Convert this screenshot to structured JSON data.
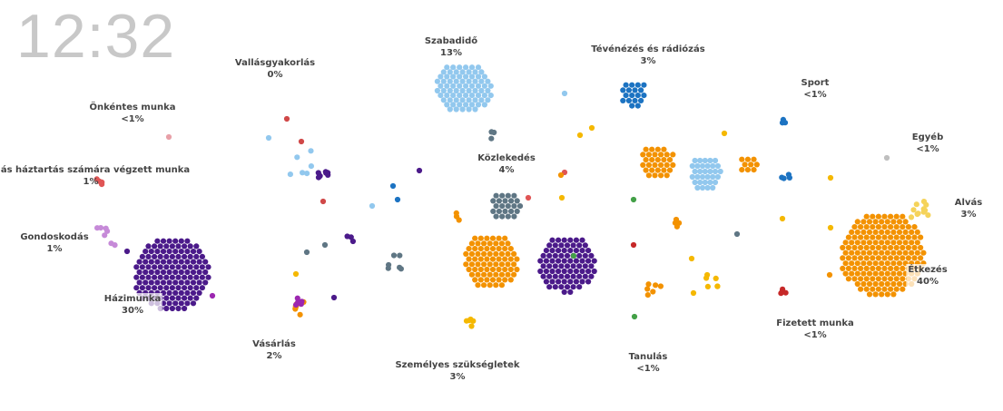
{
  "clock": "12:32",
  "chart_data": {
    "type": "scatter",
    "groups": [
      {
        "id": "hazimunka",
        "name": "Házimunka",
        "pct": "30%",
        "color": "#4b1a8a"
      },
      {
        "id": "etkezes",
        "name": "Étkezés",
        "pct": "40%",
        "color": "#f39200"
      },
      {
        "id": "szabadido",
        "name": "Szabadidő",
        "pct": "13%",
        "color": "#92c8ee"
      },
      {
        "id": "kozlekedes",
        "name": "Közlekedés",
        "pct": "4%",
        "color": "#5f7684"
      },
      {
        "id": "teve",
        "name": "Tévénézés és rádiózás",
        "pct": "3%",
        "color": "#1c73c2"
      },
      {
        "id": "sport",
        "name": "Sport",
        "pct": "<1%",
        "color": "#1c73c2"
      },
      {
        "id": "egyeb",
        "name": "Egyéb",
        "pct": "<1%",
        "color": "#bfbfbf"
      },
      {
        "id": "alvas",
        "name": "Alvás",
        "pct": "3%",
        "color": "#f5d35a"
      },
      {
        "id": "fizetett",
        "name": "Fizetett munka",
        "pct": "<1%",
        "color": "#c62828"
      },
      {
        "id": "tanulas",
        "name": "Tanulás",
        "pct": "<1%",
        "color": "#43a047"
      },
      {
        "id": "szemelyes",
        "name": "Személyes szükségletek",
        "pct": "3%",
        "color": "#f5b800"
      },
      {
        "id": "vasarlas",
        "name": "Vásárlás",
        "pct": "2%",
        "color": "#9c27b0"
      },
      {
        "id": "gondoskodas",
        "name": "Gondoskodás",
        "pct": "1%",
        "color": "#c68ad8"
      },
      {
        "id": "mashaz",
        "name": "Más háztartás számára végzett munka",
        "pct": "1%",
        "color": "#e05555"
      },
      {
        "id": "onkentes",
        "name": "Önkéntes munka",
        "pct": "<1%",
        "color": "#e8a0a8"
      },
      {
        "id": "vallas",
        "name": "Vallásgyakorlás",
        "pct": "0%",
        "color": "#d04848"
      }
    ]
  }
}
